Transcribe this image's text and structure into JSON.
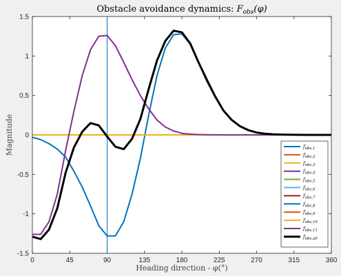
{
  "chart_data": {
    "type": "line",
    "title": "Obstacle avoidance dynamics: F_obs(φ)",
    "title_parts": [
      "Obstacle avoidance dynamics: ",
      "F",
      "obs",
      "(φ)"
    ],
    "xlabel": "Heading direction - φ(°)",
    "ylabel": "Magnitude",
    "xlim": [
      0,
      360
    ],
    "ylim": [
      -1.5,
      1.5
    ],
    "xticks": [
      "0",
      "45",
      "90",
      "135",
      "180",
      "225",
      "270",
      "315",
      "360"
    ],
    "yticks": [
      "-1.5",
      "-1",
      "-0.5",
      "0",
      "0.5",
      "1",
      "1.5"
    ],
    "xtick_values": [
      0,
      45,
      90,
      135,
      180,
      225,
      270,
      315,
      360
    ],
    "ytick_values": [
      -1.5,
      -1,
      -0.5,
      0,
      0.5,
      1,
      1.5
    ],
    "vertical_line_x": 90,
    "legend_position": "bottom-right",
    "x": [
      0,
      10,
      20,
      30,
      40,
      50,
      60,
      70,
      80,
      90,
      100,
      110,
      120,
      130,
      140,
      150,
      160,
      170,
      180,
      190,
      200,
      210,
      220,
      230,
      240,
      250,
      260,
      270,
      280,
      290,
      300,
      310,
      320,
      330,
      340,
      350,
      360
    ],
    "series": [
      {
        "name": "f_obs,1",
        "label_sub": "obs,1",
        "color": "#0072BD",
        "width": 2,
        "values": [
          -0.03,
          -0.06,
          -0.11,
          -0.18,
          -0.28,
          -0.46,
          -0.66,
          -0.9,
          -1.15,
          -1.28,
          -1.28,
          -1.1,
          -0.75,
          -0.3,
          0.25,
          0.75,
          1.1,
          1.27,
          1.28,
          1.15,
          0.92,
          0.68,
          0.48,
          0.31,
          0.19,
          0.11,
          0.06,
          0.03,
          0.015,
          0.008,
          0.004,
          0.002,
          0.001,
          0.0,
          0.0,
          0.0,
          0.0
        ]
      },
      {
        "name": "f_obs,2",
        "label_sub": "obs,2",
        "color": "#D95319",
        "width": 2,
        "values": [
          0,
          0,
          0,
          0,
          0,
          0,
          0,
          0,
          0,
          0,
          0,
          0,
          0,
          0,
          0,
          0,
          0,
          0,
          0,
          0,
          0,
          0,
          0,
          0,
          0,
          0,
          0,
          0,
          0,
          0,
          0,
          0,
          0,
          0,
          0,
          0,
          0
        ]
      },
      {
        "name": "f_obs,3",
        "label_sub": "obs,3",
        "color": "#EDB120",
        "width": 2,
        "values": [
          0,
          0,
          0,
          0,
          0,
          0,
          0,
          0,
          0,
          0,
          0,
          0,
          0,
          0,
          0,
          0,
          0,
          0,
          0,
          0,
          0,
          0,
          0,
          0,
          0,
          0,
          0,
          0,
          0,
          0,
          0,
          0,
          0,
          0,
          0,
          0,
          0
        ]
      },
      {
        "name": "f_obs,4",
        "label_sub": "obs,4",
        "color": "#7E2F8E",
        "width": 2,
        "values": [
          0,
          0,
          0,
          0,
          0,
          0,
          0,
          0,
          0,
          0,
          0,
          0,
          0,
          0,
          0,
          0,
          0,
          0,
          0,
          0,
          0,
          0,
          0,
          0,
          0,
          0,
          0,
          0,
          0,
          0,
          0,
          0,
          0,
          0,
          0,
          0,
          0
        ]
      },
      {
        "name": "f_obs,5",
        "label_sub": "obs,5",
        "color": "#77AC30",
        "width": 2,
        "values": [
          0,
          0,
          0,
          0,
          0,
          0,
          0,
          0,
          0,
          0,
          0,
          0,
          0,
          0,
          0,
          0,
          0,
          0,
          0,
          0,
          0,
          0,
          0,
          0,
          0,
          0,
          0,
          0,
          0,
          0,
          0,
          0,
          0,
          0,
          0,
          0,
          0
        ]
      },
      {
        "name": "f_obs,6",
        "label_sub": "obs,6",
        "color": "#4DBEEE",
        "width": 2,
        "values": [
          0,
          0,
          0,
          0,
          0,
          0,
          0,
          0,
          0,
          0,
          0,
          0,
          0,
          0,
          0,
          0,
          0,
          0,
          0,
          0,
          0,
          0,
          0,
          0,
          0,
          0,
          0,
          0,
          0,
          0,
          0,
          0,
          0,
          0,
          0,
          0,
          0
        ]
      },
      {
        "name": "f_obs,7",
        "label_sub": "obs,7",
        "color": "#A2142F",
        "width": 2,
        "values": [
          0,
          0,
          0,
          0,
          0,
          0,
          0,
          0,
          0,
          0,
          0,
          0,
          0,
          0,
          0,
          0,
          0,
          0,
          0,
          0,
          0,
          0,
          0,
          0,
          0,
          0,
          0,
          0,
          0,
          0,
          0,
          0,
          0,
          0,
          0,
          0,
          0
        ]
      },
      {
        "name": "f_obs,8",
        "label_sub": "obs,8",
        "color": "#0072BD",
        "width": 2,
        "values": [
          0,
          0,
          0,
          0,
          0,
          0,
          0,
          0,
          0,
          0,
          0,
          0,
          0,
          0,
          0,
          0,
          0,
          0,
          0,
          0,
          0,
          0,
          0,
          0,
          0,
          0,
          0,
          0,
          0,
          0,
          0,
          0,
          0,
          0,
          0,
          0,
          0
        ]
      },
      {
        "name": "f_obs,9",
        "label_sub": "obs,9",
        "color": "#D95319",
        "width": 2,
        "values": [
          0,
          0,
          0,
          0,
          0,
          0,
          0,
          0,
          0,
          0,
          0,
          0,
          0,
          0,
          0,
          0,
          0,
          0,
          0,
          0,
          0,
          0,
          0,
          0,
          0,
          0,
          0,
          0,
          0,
          0,
          0,
          0,
          0,
          0,
          0,
          0,
          0
        ]
      },
      {
        "name": "f_obs,10",
        "label_sub": "obs,10",
        "color": "#EDB120",
        "width": 2,
        "values": [
          0,
          0,
          0,
          0,
          0,
          0,
          0,
          0,
          0,
          0,
          0,
          0,
          0,
          0,
          0,
          0,
          0,
          0,
          0,
          0,
          0,
          0,
          0,
          0,
          0,
          0,
          0,
          0,
          0,
          0,
          0,
          0,
          0,
          0,
          0,
          0,
          0
        ]
      },
      {
        "name": "f_obs,11",
        "label_sub": "obs,11",
        "color": "#7E2F8E",
        "width": 2,
        "values": [
          -1.26,
          -1.26,
          -1.1,
          -0.75,
          -0.2,
          0.3,
          0.75,
          1.08,
          1.25,
          1.26,
          1.13,
          0.92,
          0.7,
          0.5,
          0.33,
          0.19,
          0.1,
          0.05,
          0.02,
          0.01,
          0.004,
          0.002,
          0.001,
          0.0,
          0.0,
          0.0,
          0.0,
          0.0,
          0.0,
          0.0,
          0.0,
          0.0,
          0.0,
          0.0,
          0.0,
          0.0,
          0.0
        ]
      },
      {
        "name": "f_obs,all",
        "label_sub": "obs,all",
        "color": "#000000",
        "width": 3,
        "values": [
          -1.29,
          -1.32,
          -1.2,
          -0.93,
          -0.48,
          -0.16,
          0.04,
          0.15,
          0.12,
          -0.02,
          -0.15,
          -0.18,
          -0.05,
          0.2,
          0.58,
          0.94,
          1.19,
          1.32,
          1.3,
          1.16,
          0.92,
          0.7,
          0.49,
          0.31,
          0.19,
          0.11,
          0.06,
          0.03,
          0.015,
          0.008,
          0.004,
          0.002,
          0.001,
          0.0,
          0.0,
          0.0,
          0.0
        ]
      }
    ]
  }
}
